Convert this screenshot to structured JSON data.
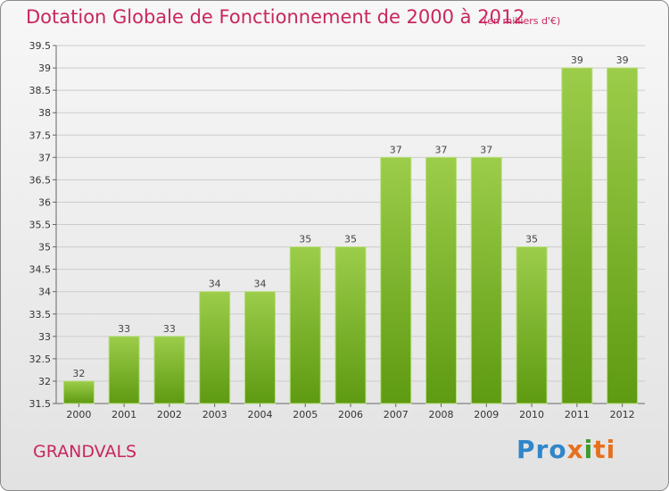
{
  "header": {
    "title": "Dotation Globale de Fonctionnement de 2000 à 2012",
    "units": "(en milliers d'€)"
  },
  "footer": {
    "commune": "GRANDVALS",
    "logo": {
      "p1": "Pro",
      "p2": "x",
      "p3": "i",
      "p4": "ti"
    }
  },
  "colors": {
    "bar_top": "#9ccd4a",
    "bar_bottom": "#5e9a12",
    "title": "#c8265f",
    "grid": "#cccccc"
  },
  "chart_data": {
    "type": "bar",
    "title": "Dotation Globale de Fonctionnement de 2000 à 2012",
    "subtitle": "(en milliers d'€)",
    "categories": [
      "2000",
      "2001",
      "2002",
      "2003",
      "2004",
      "2005",
      "2006",
      "2007",
      "2008",
      "2009",
      "2010",
      "2011",
      "2012"
    ],
    "values": [
      32,
      33,
      33,
      34,
      34,
      35,
      35,
      37,
      37,
      37,
      35,
      39,
      39
    ],
    "ylim": [
      31.5,
      39.5
    ],
    "yticks": [
      31.5,
      32,
      32.5,
      33,
      33.5,
      34,
      34.5,
      35,
      35.5,
      36,
      36.5,
      37,
      37.5,
      38,
      38.5,
      39,
      39.5
    ],
    "grid": "horizontal"
  }
}
